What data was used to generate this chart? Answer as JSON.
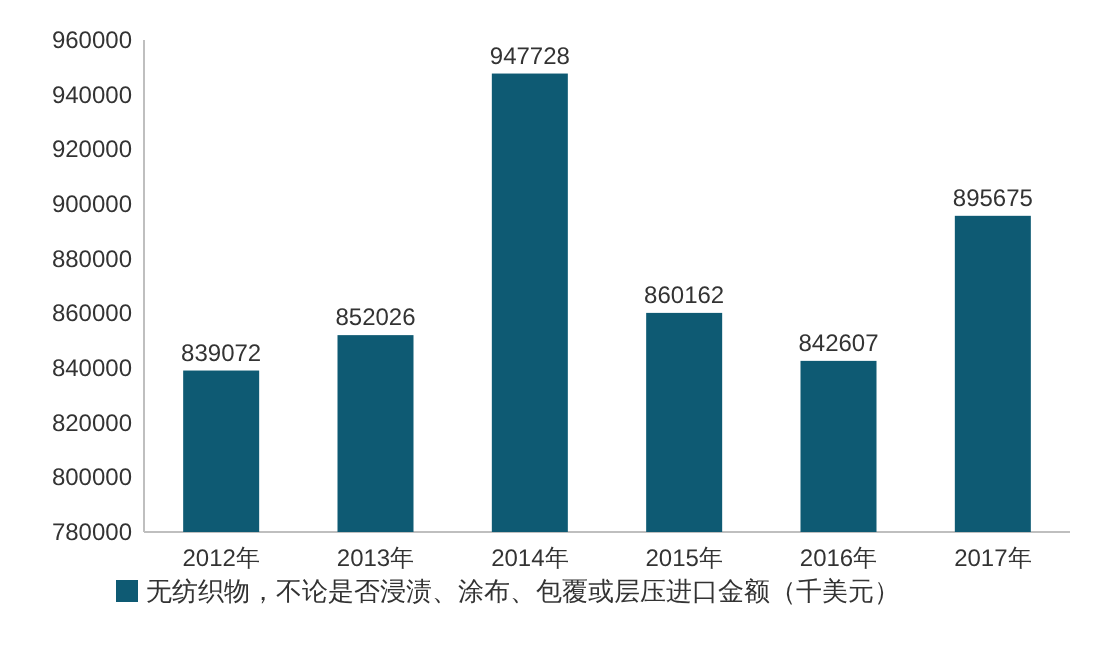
{
  "chart_data": {
    "type": "bar",
    "categories": [
      "2012年",
      "2013年",
      "2014年",
      "2015年",
      "2016年",
      "2017年"
    ],
    "series": [
      {
        "name": "无纺织物，不论是否浸渍、涂布、包覆或层压进口金额（千美元）",
        "color": "#0e5a73",
        "values": [
          839072,
          852026,
          947728,
          860162,
          842607,
          895675
        ]
      }
    ],
    "ylim": [
      780000,
      960000
    ],
    "yticks": [
      780000,
      800000,
      820000,
      840000,
      860000,
      880000,
      900000,
      920000,
      940000,
      960000
    ],
    "data_labels": true,
    "legend": "bottom",
    "grid": false
  }
}
